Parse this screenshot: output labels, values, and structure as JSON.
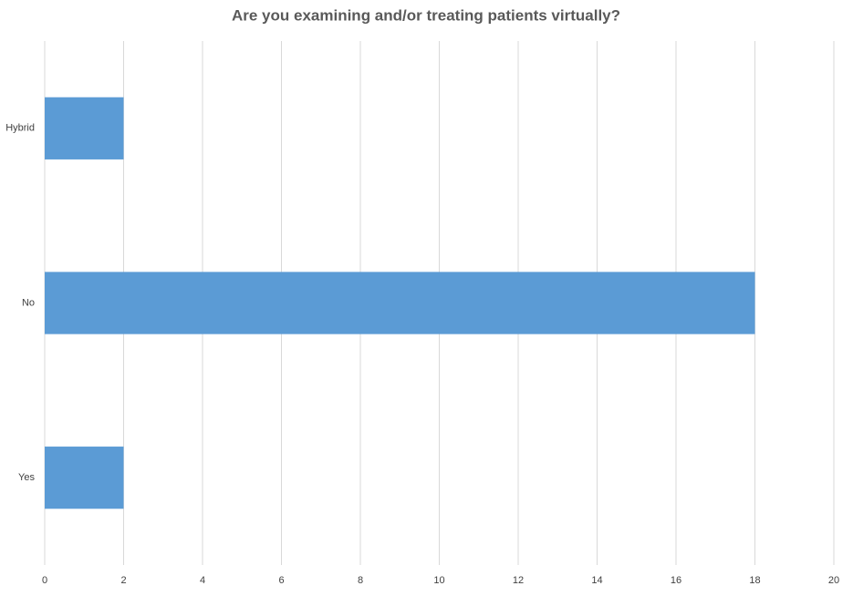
{
  "chart_data": {
    "type": "hbar",
    "title": "Are you examining and/or treating patients virtually?",
    "categories": [
      "Hybrid",
      "No",
      "Yes"
    ],
    "values": [
      2,
      18,
      2
    ],
    "color": "#5b9bd5",
    "xlim": [
      0,
      20
    ],
    "xticks": [
      0,
      2,
      4,
      6,
      8,
      10,
      12,
      14,
      16,
      18,
      20
    ],
    "grid": true
  }
}
